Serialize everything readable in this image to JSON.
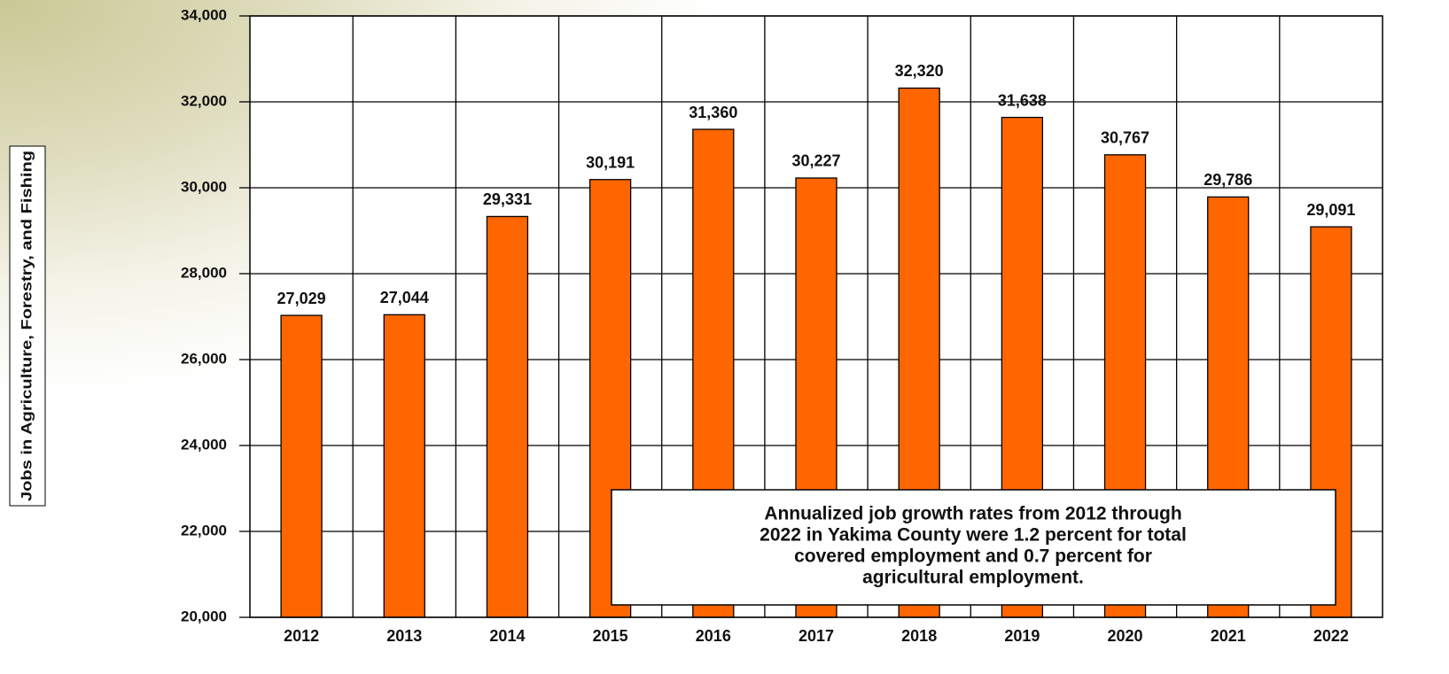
{
  "chart_data": {
    "type": "bar",
    "y_axis_label": "Jobs in Agriculture, Forestry, and Fishing",
    "categories": [
      "2012",
      "2013",
      "2014",
      "2015",
      "2016",
      "2017",
      "2018",
      "2019",
      "2020",
      "2021",
      "2022"
    ],
    "values": [
      27029,
      27044,
      29331,
      30191,
      31360,
      30227,
      32320,
      31638,
      30767,
      29786,
      29091
    ],
    "value_labels": [
      "27,029",
      "27,044",
      "29,331",
      "30,191",
      "31,360",
      "30,227",
      "32,320",
      "31,638",
      "30,767",
      "29,786",
      "29,091"
    ],
    "color": "#ff6600",
    "ylim": [
      20000,
      34000
    ],
    "yticks": [
      {
        "value": 20000,
        "label": "20,000"
      },
      {
        "value": 22000,
        "label": "22,000"
      },
      {
        "value": 24000,
        "label": "24,000"
      },
      {
        "value": 26000,
        "label": "26,000"
      },
      {
        "value": 28000,
        "label": "28,000"
      },
      {
        "value": 30000,
        "label": "30,000"
      },
      {
        "value": 32000,
        "label": "32,000"
      },
      {
        "value": 34000,
        "label": "34,000"
      }
    ],
    "grid": true,
    "annotation": [
      "Annualized job growth rates from 2012 through",
      "2022 in Yakima County were 1.2 percent for total",
      "covered employment and 0.7 percent for",
      "agricultural employment."
    ]
  }
}
